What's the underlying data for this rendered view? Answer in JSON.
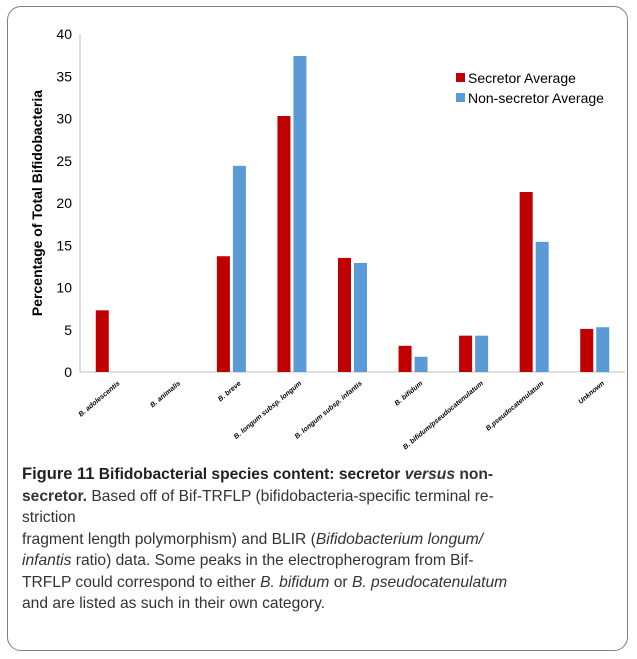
{
  "chart_data": {
    "type": "bar",
    "ylabel": "Percentage of Total Bifidobacteria",
    "xlabel": "",
    "ylim": [
      0,
      40
    ],
    "yticks": [
      "0",
      "5",
      "10",
      "15",
      "20",
      "25",
      "30",
      "35",
      "40"
    ],
    "categories": [
      "B. adolescentis",
      "B. animalis",
      "B. breve",
      "B. longum subsp. longum",
      "B. longum subsp. infantis",
      "B. bifidum",
      "B. bifidum/pseudocatenulatum",
      "B.pseudocatenulatum",
      "Unknown"
    ],
    "series": [
      {
        "name": "Secretor Average",
        "color": "#c00000",
        "values": [
          7.3,
          0,
          13.7,
          30.3,
          13.5,
          3.1,
          4.3,
          21.3,
          5.1
        ]
      },
      {
        "name": "Non-secretor Average",
        "color": "#5b9bd5",
        "values": [
          0,
          0,
          24.4,
          37.4,
          12.9,
          1.8,
          4.3,
          15.4,
          5.3
        ]
      }
    ],
    "legend_position": "top-right",
    "grid": false
  },
  "caption": {
    "figure_label": "Figure 11",
    "title_part1": " Bifidobacterial species content",
    "title_part2": ": secretor ",
    "title_part3": "versus",
    "title_part4": " non-",
    "title_part5": "secretor.",
    "body_line1_a": " Based off of Bif-TRFLP (bifidobacteria-specific terminal re-",
    "body_line2": "striction",
    "body_line3_a": "fragment length polymorphism) and BLIR (",
    "body_line3_b": "Bifidobacterium longum/",
    "body_line4_a": "infantis",
    "body_line4_b": " ratio) data. Some peaks in the electropherogram from Bif-",
    "body_line5_a": "TRFLP could correspond to either ",
    "body_line5_b": "B. bifidum",
    "body_line5_c": " or ",
    "body_line5_d": "B. pseudocatenulatum",
    "body_line6": "and are listed as such in their own category."
  }
}
